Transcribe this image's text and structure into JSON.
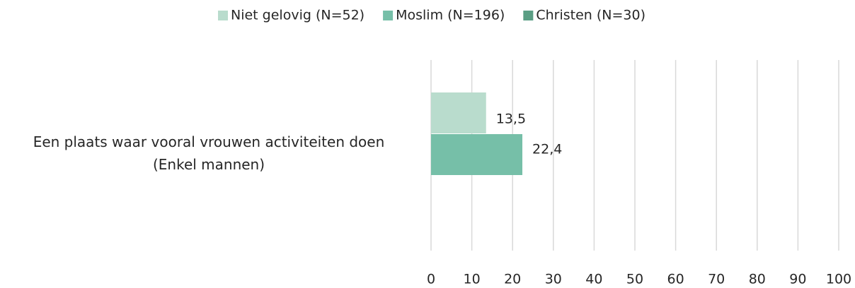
{
  "chart_data": {
    "type": "hbar",
    "categories": [
      "Een plaats waar vooral vrouwen activiteiten doen\n(Enkel mannen)"
    ],
    "series": [
      {
        "name": "Niet gelovig (N=52)",
        "color": "#b9dccd",
        "values": [
          13.5
        ],
        "value_labels": [
          "13,5"
        ]
      },
      {
        "name": "Moslim (N=196)",
        "color": "#76bfa8",
        "values": [
          22.4
        ],
        "value_labels": [
          "22,4"
        ]
      },
      {
        "name": "Christen (N=30)",
        "color": "#5a9e84",
        "values": [
          null
        ],
        "value_labels": [
          null
        ]
      }
    ],
    "xlim": [
      0,
      100
    ],
    "xticks": [
      0,
      10,
      20,
      30,
      40,
      50,
      60,
      70,
      80,
      90,
      100
    ],
    "grid": true,
    "legend": "top"
  }
}
